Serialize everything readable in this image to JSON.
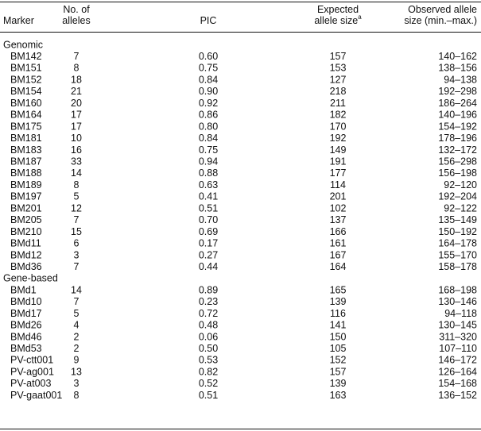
{
  "table": {
    "header": [
      {
        "lines": [
          "Marker"
        ]
      },
      {
        "lines": [
          "No. of",
          "alleles"
        ]
      },
      {
        "lines": [
          "PIC"
        ]
      },
      {
        "lines": [
          "Expected",
          "allele size"
        ],
        "footnote": "a"
      },
      {
        "lines": [
          "Observed allele",
          "size (min.–max.)"
        ]
      }
    ],
    "sections": [
      {
        "title": "Genomic",
        "rows": [
          [
            "BM142",
            "7",
            "0.60",
            "157",
            "140–162"
          ],
          [
            "BM151",
            "8",
            "0.75",
            "153",
            "138–156"
          ],
          [
            "BM152",
            "18",
            "0.84",
            "127",
            "94–138"
          ],
          [
            "BM154",
            "21",
            "0.90",
            "218",
            "192–298"
          ],
          [
            "BM160",
            "20",
            "0.92",
            "211",
            "186–264"
          ],
          [
            "BM164",
            "17",
            "0.86",
            "182",
            "140–196"
          ],
          [
            "BM175",
            "17",
            "0.80",
            "170",
            "154–192"
          ],
          [
            "BM181",
            "10",
            "0.84",
            "192",
            "178–196"
          ],
          [
            "BM183",
            "16",
            "0.75",
            "149",
            "132–172"
          ],
          [
            "BM187",
            "33",
            "0.94",
            "191",
            "156–298"
          ],
          [
            "BM188",
            "14",
            "0.88",
            "177",
            "156–198"
          ],
          [
            "BM189",
            "8",
            "0.63",
            "114",
            "92–120"
          ],
          [
            "BM197",
            "5",
            "0.41",
            "201",
            "192–204"
          ],
          [
            "BM201",
            "12",
            "0.51",
            "102",
            "92–122"
          ],
          [
            "BM205",
            "7",
            "0.70",
            "137",
            "135–149"
          ],
          [
            "BM210",
            "15",
            "0.69",
            "166",
            "150–192"
          ],
          [
            "BMd11",
            "6",
            "0.17",
            "161",
            "164–178"
          ],
          [
            "BMd12",
            "3",
            "0.27",
            "167",
            "155–170"
          ],
          [
            "BMd36",
            "7",
            "0.44",
            "164",
            "158–178"
          ]
        ]
      },
      {
        "title": "Gene-based",
        "rows": [
          [
            "BMd1",
            "14",
            "0.89",
            "165",
            "168–198"
          ],
          [
            "BMd10",
            "7",
            "0.23",
            "139",
            "130–146"
          ],
          [
            "BMd17",
            "5",
            "0.72",
            "116",
            "94–118"
          ],
          [
            "BMd26",
            "4",
            "0.48",
            "141",
            "130–145"
          ],
          [
            "BMd46",
            "2",
            "0.06",
            "150",
            "311–320"
          ],
          [
            "BMd53",
            "2",
            "0.50",
            "105",
            "107–110"
          ],
          [
            "PV-ctt001",
            "9",
            "0.53",
            "152",
            "146–172"
          ],
          [
            "PV-ag001",
            "13",
            "0.82",
            "157",
            "126–164"
          ],
          [
            "PV-at003",
            "3",
            "0.52",
            "139",
            "154–168"
          ],
          [
            "PV-gaat001",
            "8",
            "0.51",
            "163",
            "136–152"
          ]
        ]
      }
    ]
  }
}
